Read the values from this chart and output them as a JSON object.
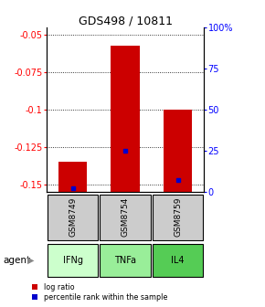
{
  "title": "GDS498 / 10811",
  "samples": [
    "GSM8749",
    "GSM8754",
    "GSM8759"
  ],
  "agents": [
    "IFNg",
    "TNFa",
    "IL4"
  ],
  "log_ratios": [
    -0.135,
    -0.057,
    -0.1
  ],
  "percentile_ranks": [
    2.5,
    25.0,
    7.0
  ],
  "ylim_left": [
    -0.155,
    -0.045
  ],
  "ylim_right": [
    0,
    100
  ],
  "yticks_left": [
    -0.05,
    -0.075,
    -0.1,
    -0.125,
    -0.15
  ],
  "yticks_right": [
    0,
    25,
    50,
    75,
    100
  ],
  "ytick_labels_left": [
    "-0.05",
    "-0.075",
    "-0.1",
    "-0.125",
    "-0.15"
  ],
  "ytick_labels_right": [
    "0",
    "25",
    "50",
    "75",
    "100%"
  ],
  "bar_color_red": "#cc0000",
  "bar_color_blue": "#0000cc",
  "sample_box_color": "#cccccc",
  "agent_colors": [
    "#ccffcc",
    "#99ee99",
    "#55cc55"
  ],
  "legend_red_label": "log ratio",
  "legend_blue_label": "percentile rank within the sample",
  "agent_label": "agent",
  "bar_width": 0.55
}
